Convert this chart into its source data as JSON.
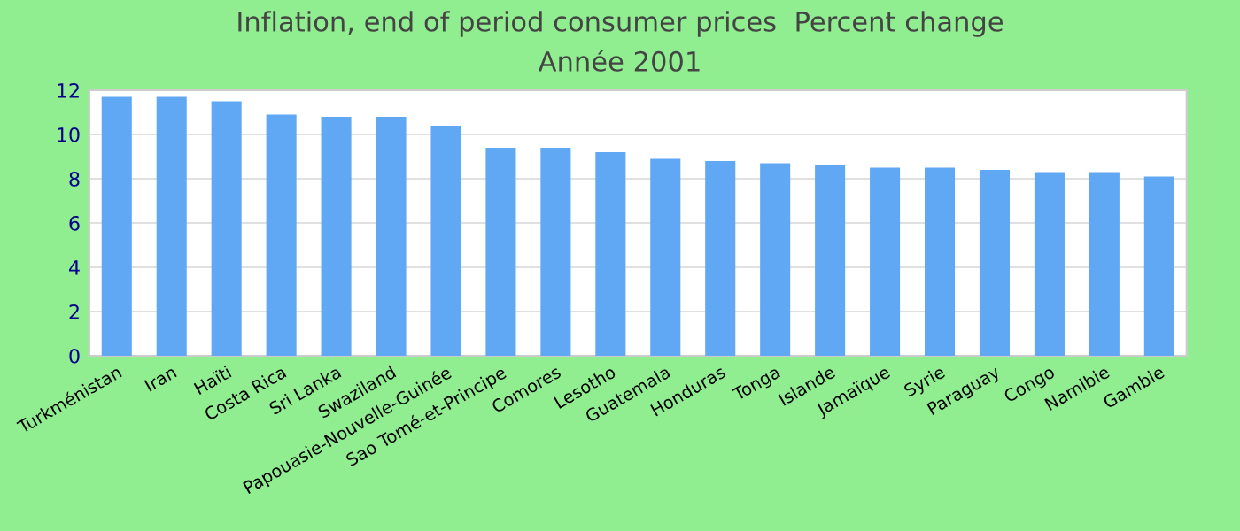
{
  "chart_data": {
    "type": "bar",
    "title": "Inflation, end of period consumer prices  Percent change",
    "subtitle": "Année 2001",
    "categories": [
      "Turkménistan",
      "Iran",
      "Haïti",
      "Costa Rica",
      "Sri Lanka",
      "Swaziland",
      "Papouasie-Nouvelle-Guinée",
      "Sao Tomé-et-Principe",
      "Comores",
      "Lesotho",
      "Guatemala",
      "Honduras",
      "Tonga",
      "Islande",
      "Jamaïque",
      "Syrie",
      "Paraguay",
      "Congo",
      "Namibie",
      "Gambie"
    ],
    "values": [
      11.7,
      11.7,
      11.5,
      10.9,
      10.8,
      10.8,
      10.4,
      9.4,
      9.4,
      9.2,
      8.9,
      8.8,
      8.7,
      8.6,
      8.5,
      8.5,
      8.4,
      8.3,
      8.3,
      8.1
    ],
    "color": "#60a8f4",
    "ylim": [
      0,
      12
    ],
    "yticks": [
      0,
      2,
      4,
      6,
      8,
      10,
      12
    ],
    "grid": "y",
    "legend": false
  }
}
